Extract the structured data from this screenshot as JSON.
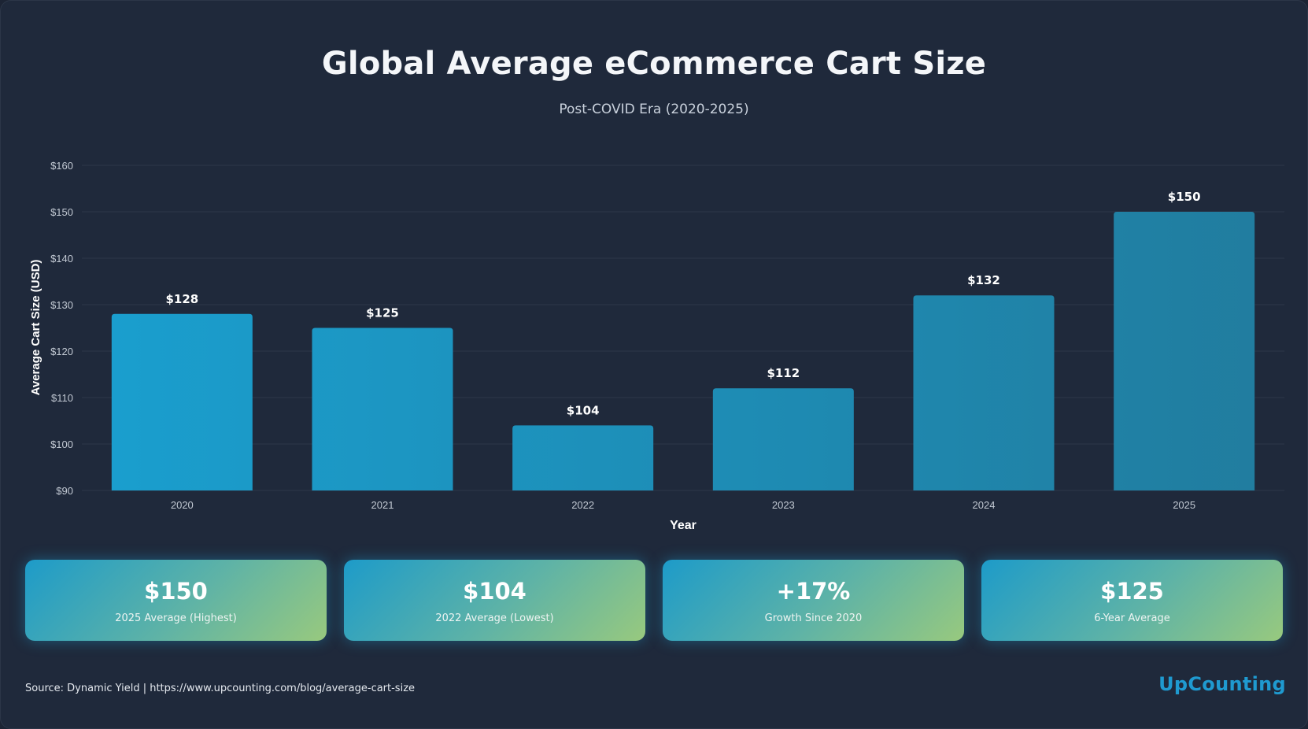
{
  "header": {
    "title": "Global Average eCommerce Cart Size",
    "subtitle": "Post-COVID Era (2020-2025)"
  },
  "chart_data": {
    "type": "bar",
    "title": "Global Average eCommerce Cart Size",
    "subtitle": "Post-COVID Era (2020-2025)",
    "xlabel": "Year",
    "ylabel": "Average Cart Size (USD)",
    "categories": [
      "2020",
      "2021",
      "2022",
      "2023",
      "2024",
      "2025"
    ],
    "values": [
      128,
      125,
      104,
      112,
      132,
      150
    ],
    "data_labels": [
      "$128",
      "$125",
      "$104",
      "$112",
      "$132",
      "$150"
    ],
    "ylim": [
      90,
      160
    ],
    "yticks": [
      90,
      100,
      110,
      120,
      130,
      140,
      150,
      160
    ],
    "ytick_labels": [
      "$90",
      "$100",
      "$110",
      "$120",
      "$130",
      "$140",
      "$150",
      "$160"
    ],
    "grid": true,
    "bar_color_start": "#1a9fcf",
    "bar_color_end": "#217c9e"
  },
  "stats": [
    {
      "value": "$150",
      "label": "2025 Average (Highest)"
    },
    {
      "value": "$104",
      "label": "2022 Average (Lowest)"
    },
    {
      "value": "+17%",
      "label": "Growth Since 2020"
    },
    {
      "value": "$125",
      "label": "6-Year Average"
    }
  ],
  "footer": {
    "source": "Source: Dynamic Yield | https://www.upcounting.com/blog/average-cart-size",
    "brand": "UpCounting"
  },
  "colors": {
    "background": "#1f293b",
    "grid": "#2c3648",
    "axis_text": "#c2c9d3",
    "card_gradient": [
      "#1d9bc9",
      "#98c97e"
    ],
    "brand": "#1f9ad0"
  }
}
